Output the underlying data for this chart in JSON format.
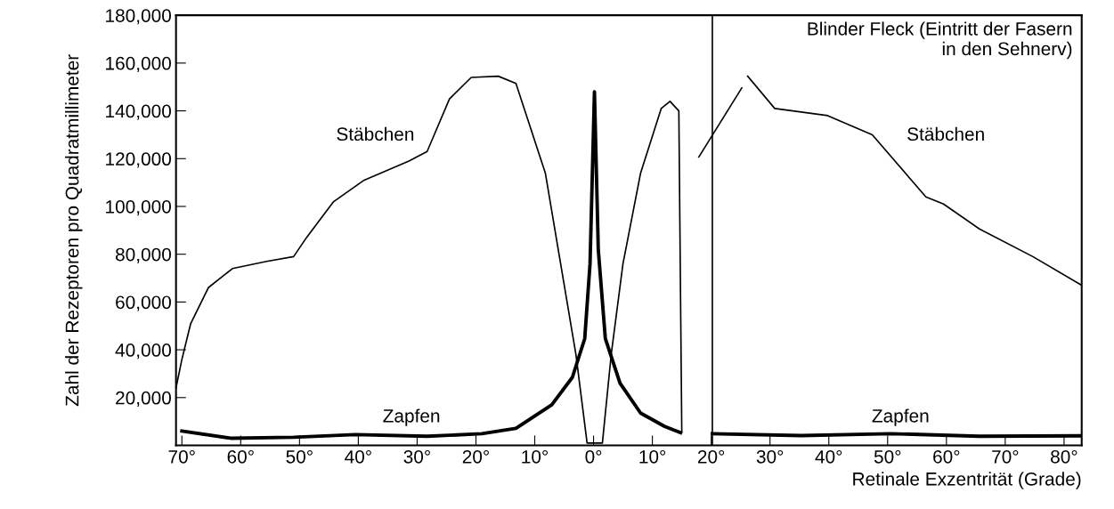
{
  "chart_data": {
    "type": "line",
    "ylabel": "Zahl der Rezeptoren pro Quadratmillimeter",
    "xlabel": "Retinale Exzentrität (Grade)",
    "xlim": [
      -71,
      83
    ],
    "ylim": [
      0,
      180000
    ],
    "xticks": [
      {
        "value": -70,
        "label": "70°"
      },
      {
        "value": -60,
        "label": "60°"
      },
      {
        "value": -50,
        "label": "50°"
      },
      {
        "value": -40,
        "label": "40°"
      },
      {
        "value": -30,
        "label": "30°"
      },
      {
        "value": -20,
        "label": "20°"
      },
      {
        "value": -10,
        "label": "10°"
      },
      {
        "value": 0,
        "label": "0°"
      },
      {
        "value": 10,
        "label": "10°"
      },
      {
        "value": 20,
        "label": "20°"
      },
      {
        "value": 30,
        "label": "30°"
      },
      {
        "value": 40,
        "label": "40°"
      },
      {
        "value": 50,
        "label": "50°"
      },
      {
        "value": 60,
        "label": "60°"
      },
      {
        "value": 70,
        "label": "70°"
      },
      {
        "value": 80,
        "label": "80°"
      }
    ],
    "yticks": [
      {
        "value": 20000,
        "label": "20,000"
      },
      {
        "value": 40000,
        "label": "40,000"
      },
      {
        "value": 60000,
        "label": "60,000"
      },
      {
        "value": 80000,
        "label": "80,000"
      },
      {
        "value": 100000,
        "label": "100,000"
      },
      {
        "value": 120000,
        "label": "120,000"
      },
      {
        "value": 140000,
        "label": "140,000"
      },
      {
        "value": 160000,
        "label": "160,000"
      },
      {
        "value": 180000,
        "label": "180,000"
      }
    ],
    "grid": false,
    "marker": "none",
    "line_style": "solid",
    "series": [
      {
        "color": "#000000",
        "x": [
          -71,
          -70,
          -68.5,
          -65.5,
          -61.4,
          -55.6,
          -51,
          -48.8,
          -44.2,
          -39,
          -31.4,
          -28.3,
          -24.5,
          -20.8,
          -16.2,
          -13.2,
          -8.2,
          -5.6,
          -3.0,
          -1.1,
          1.5,
          3.0,
          5.0,
          8.0,
          11.5,
          13.0,
          14.5,
          15.0,
          18,
          26.2,
          30.8,
          39.8,
          47.4,
          56.5,
          59.5,
          65.6,
          74.7,
          83
        ],
        "values": [
          24000,
          36000,
          51000,
          66000,
          74000,
          77000,
          79000,
          87000,
          102000,
          111000,
          119000,
          123000,
          145000,
          154000,
          154500,
          151500,
          114000,
          76000,
          38000,
          1000,
          1000,
          38000,
          76000,
          114000,
          141000,
          144000,
          140000,
          6000,
          null,
          154500,
          141000,
          138000,
          130000,
          104000,
          101000,
          90600,
          79000,
          67000
        ]
      },
      {
        "color": "#000000",
        "x": [
          -70,
          -61.7,
          -51,
          -40.5,
          -28.3,
          -19,
          -13.2,
          -7.1,
          -3.6,
          -1.5,
          -0.6,
          0.15,
          0.8,
          2.0,
          4.5,
          8.0,
          12.1,
          14.8,
          18,
          20.2,
          35.3,
          50.5,
          65.6,
          83
        ],
        "values": [
          6000,
          3000,
          3400,
          4500,
          3800,
          4900,
          7100,
          17000,
          28500,
          44700,
          76000,
          148000,
          82000,
          44700,
          26000,
          13500,
          7900,
          5300,
          null,
          4900,
          4100,
          4900,
          3800,
          4000
        ]
      },
      {
        "color": "#000000",
        "x": [
          17.9,
          25.2
        ],
        "values": [
          120700,
          149600
        ]
      }
    ],
    "ref_lines": [
      {
        "axis": "x",
        "value": 20.2,
        "color": "#000000",
        "line_style": "solid"
      }
    ],
    "annotations": [
      "Stäbchen",
      "Stäbchen",
      "Zapfen",
      "Zapfen",
      "Blinder Fleck (Eintritt der Fasern\nin den Sehnerv)"
    ]
  }
}
